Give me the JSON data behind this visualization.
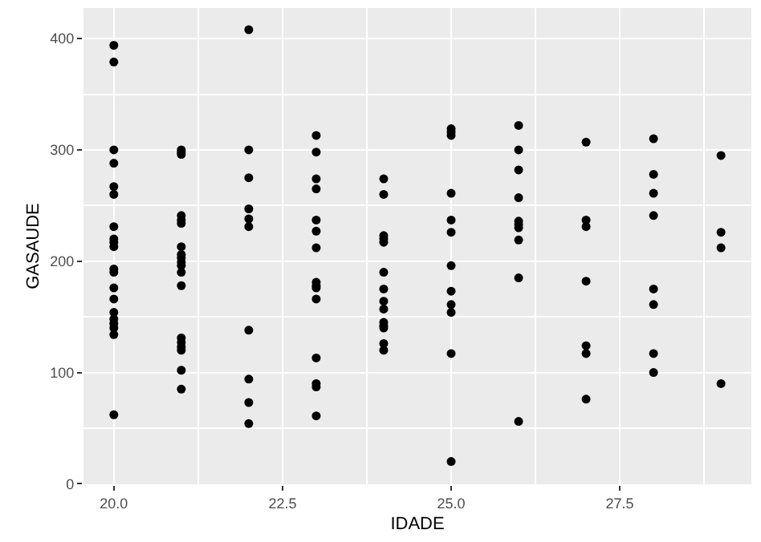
{
  "chart_data": {
    "type": "scatter",
    "xlabel": "IDADE",
    "ylabel": "GASAUDE",
    "x": [
      20,
      20,
      20,
      20,
      20,
      20,
      20,
      20,
      20,
      20,
      20,
      20,
      20,
      20,
      20,
      20,
      20,
      20,
      20,
      20,
      21,
      21,
      21,
      21,
      21,
      21,
      21,
      21,
      21,
      21,
      21,
      21,
      21,
      21,
      21,
      21,
      21,
      21,
      21,
      22,
      22,
      22,
      22,
      22,
      22,
      22,
      22,
      22,
      22,
      23,
      23,
      23,
      23,
      23,
      23,
      23,
      23,
      23,
      23,
      23,
      23,
      23,
      23,
      23,
      24,
      24,
      24,
      24,
      24,
      24,
      24,
      24,
      24,
      24,
      24,
      24,
      24,
      24,
      25,
      25,
      25,
      25,
      25,
      25,
      25,
      25,
      25,
      25,
      25,
      25,
      26,
      26,
      26,
      26,
      26,
      26,
      26,
      26,
      26,
      26,
      27,
      27,
      27,
      27,
      27,
      27,
      27,
      28,
      28,
      28,
      28,
      28,
      28,
      28,
      28,
      29,
      29,
      29,
      29
    ],
    "values": [
      394,
      379,
      300,
      288,
      267,
      260,
      231,
      220,
      217,
      213,
      193,
      190,
      176,
      166,
      154,
      148,
      144,
      140,
      134,
      62,
      300,
      298,
      296,
      241,
      237,
      234,
      213,
      206,
      203,
      199,
      196,
      190,
      178,
      131,
      127,
      123,
      120,
      102,
      85,
      408,
      300,
      275,
      247,
      238,
      231,
      138,
      94,
      73,
      54,
      313,
      298,
      274,
      265,
      237,
      227,
      212,
      181,
      178,
      176,
      166,
      113,
      90,
      87,
      61,
      274,
      260,
      223,
      220,
      217,
      190,
      175,
      164,
      157,
      145,
      142,
      140,
      126,
      120,
      319,
      316,
      313,
      261,
      237,
      226,
      196,
      173,
      161,
      154,
      117,
      20,
      322,
      300,
      282,
      257,
      236,
      233,
      230,
      219,
      185,
      56,
      307,
      237,
      231,
      182,
      124,
      117,
      76,
      310,
      278,
      261,
      241,
      175,
      161,
      117,
      100,
      295,
      226,
      212,
      90
    ],
    "color": "#000000",
    "marker": "circle",
    "grid": true,
    "legend": false,
    "xlim": [
      19.55,
      29.45
    ],
    "ylim": [
      -0.5,
      427.5
    ],
    "xticks": [
      {
        "value": 20,
        "label": "20.0"
      },
      {
        "value": 22.5,
        "label": "22.5"
      },
      {
        "value": 25,
        "label": "25.0"
      },
      {
        "value": 27.5,
        "label": "27.5"
      }
    ],
    "yticks": [
      0,
      100,
      200,
      300,
      400
    ]
  }
}
